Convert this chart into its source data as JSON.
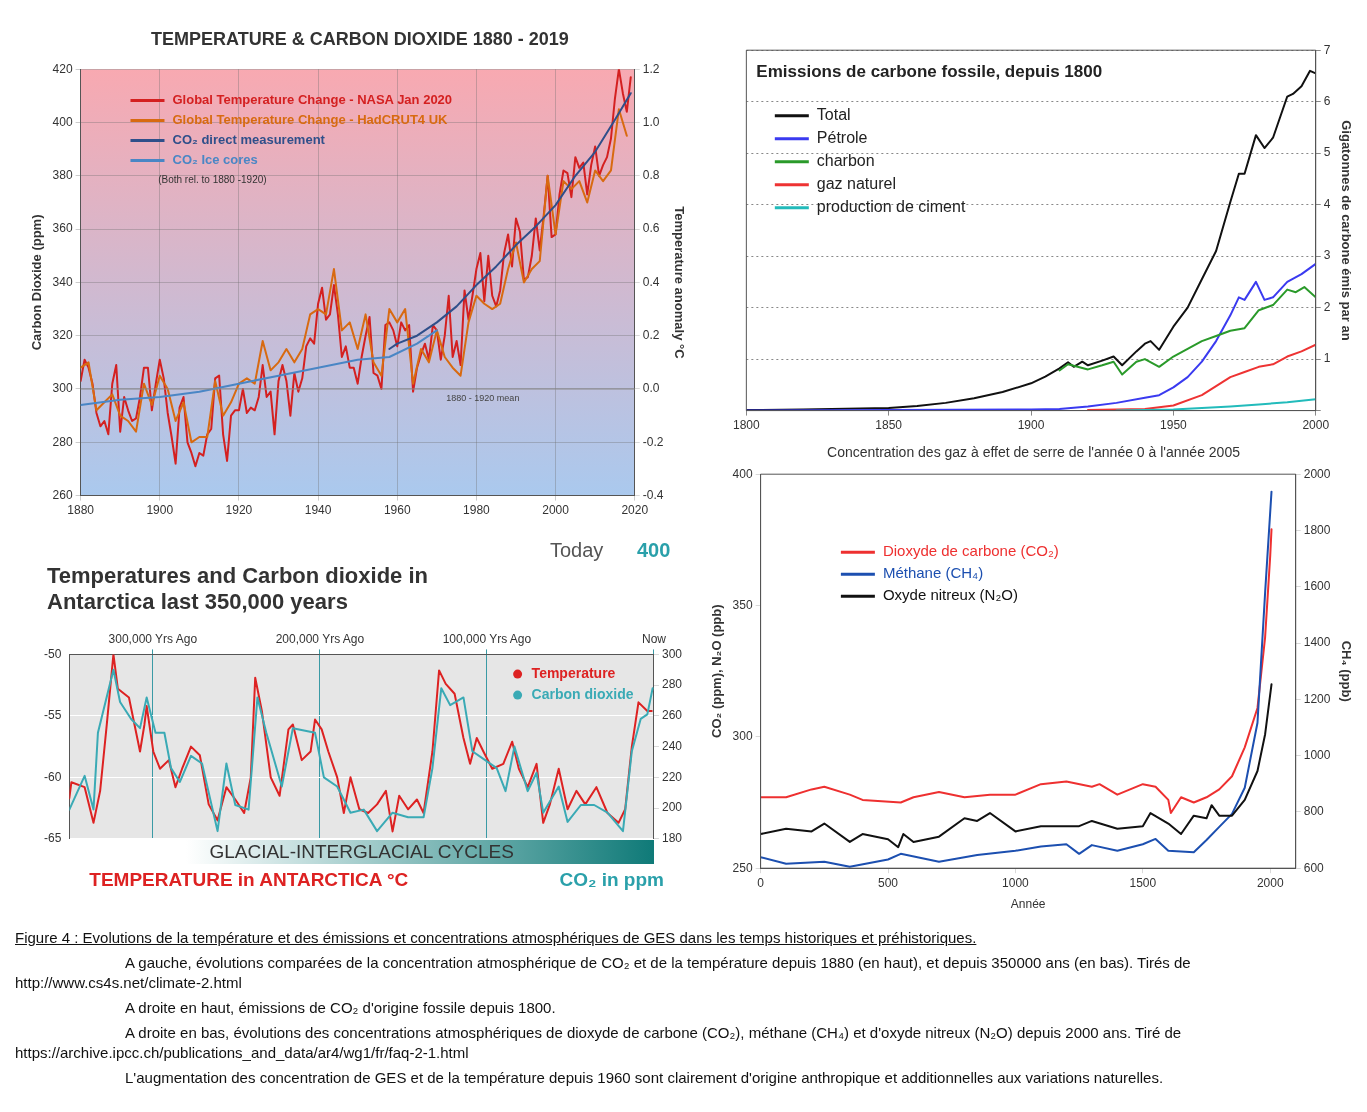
{
  "chart_data": [
    {
      "type": "line",
      "title": "TEMPERATURE & CARBON DIOXIDE 1880 - 2019",
      "ylabel": "Carbon Dioxide (ppm)",
      "y2label": "Temperature anomaly °C",
      "xlim": [
        1880,
        2020
      ],
      "xticks": [
        1880,
        1900,
        1920,
        1940,
        1960,
        1980,
        2000,
        2020
      ],
      "ylim": [
        260,
        420
      ],
      "yticks": [
        260,
        280,
        300,
        320,
        340,
        360,
        380,
        400,
        420
      ],
      "y2lim": [
        -0.4,
        1.2
      ],
      "y2ticks": [
        {
          "value": -0.4,
          "label": "-0.4"
        },
        {
          "value": -0.2,
          "label": "-0.2"
        },
        {
          "value": 0,
          "label": "0.0"
        },
        {
          "value": 0.2,
          "label": "0.2"
        },
        {
          "value": 0.4,
          "label": "0.4"
        },
        {
          "value": 0.6,
          "label": "0.6"
        },
        {
          "value": 0.8,
          "label": "0.8"
        },
        {
          "value": 1,
          "label": "1.0"
        },
        {
          "value": 1.2,
          "label": "1.2"
        }
      ],
      "grid": true,
      "legend": "top left",
      "annotations": [
        "(Both rel. to 1880 -1920)"
      ],
      "ref_lines": [
        {
          "axis": "y2",
          "value": 0,
          "label": "1880 - 1920 mean",
          "color": "#8a8a8a"
        }
      ],
      "series": [
        {
          "name": "Global Temperature Change - NASA Jan 2020",
          "color": "#d42020",
          "axis": "y2",
          "x": [
            1880,
            1881,
            1882,
            1883,
            1884,
            1885,
            1886,
            1887,
            1888,
            1889,
            1890,
            1891,
            1892,
            1893,
            1894,
            1895,
            1896,
            1897,
            1898,
            1899,
            1900,
            1901,
            1902,
            1903,
            1904,
            1905,
            1906,
            1907,
            1908,
            1909,
            1910,
            1911,
            1912,
            1913,
            1914,
            1915,
            1916,
            1917,
            1918,
            1919,
            1920,
            1921,
            1922,
            1923,
            1924,
            1925,
            1926,
            1927,
            1928,
            1929,
            1930,
            1931,
            1932,
            1933,
            1934,
            1935,
            1936,
            1937,
            1938,
            1939,
            1940,
            1941,
            1942,
            1943,
            1944,
            1945,
            1946,
            1947,
            1948,
            1949,
            1950,
            1951,
            1952,
            1953,
            1954,
            1955,
            1956,
            1957,
            1958,
            1959,
            1960,
            1961,
            1962,
            1963,
            1964,
            1965,
            1966,
            1967,
            1968,
            1969,
            1970,
            1971,
            1972,
            1973,
            1974,
            1975,
            1976,
            1977,
            1978,
            1979,
            1980,
            1981,
            1982,
            1983,
            1984,
            1985,
            1986,
            1987,
            1988,
            1989,
            1990,
            1991,
            1992,
            1993,
            1994,
            1995,
            1996,
            1997,
            1998,
            1999,
            2000,
            2001,
            2002,
            2003,
            2004,
            2005,
            2006,
            2007,
            2008,
            2009,
            2010,
            2011,
            2012,
            2013,
            2014,
            2015,
            2016,
            2017,
            2018,
            2019
          ],
          "values": [
            0.03,
            0.11,
            0.08,
            0.02,
            -0.09,
            -0.14,
            -0.12,
            -0.17,
            0.02,
            0.09,
            -0.16,
            -0.03,
            -0.08,
            -0.12,
            -0.11,
            -0.03,
            0.08,
            0.08,
            -0.08,
            0.02,
            0.11,
            0.04,
            -0.09,
            -0.18,
            -0.28,
            -0.07,
            -0.03,
            -0.2,
            -0.24,
            -0.29,
            -0.24,
            -0.25,
            -0.17,
            -0.15,
            0.04,
            0.05,
            -0.17,
            -0.27,
            -0.1,
            -0.08,
            -0.08,
            0,
            -0.09,
            -0.07,
            -0.08,
            -0.03,
            0.09,
            -0.03,
            -0.01,
            -0.17,
            0.03,
            0.09,
            0.03,
            -0.1,
            0.06,
            -0.01,
            0.04,
            0.16,
            0.19,
            0.17,
            0.32,
            0.38,
            0.26,
            0.28,
            0.39,
            0.28,
            0.12,
            0.16,
            0.08,
            0.08,
            0.02,
            0.12,
            0.2,
            0.27,
            0.06,
            0.05,
            0,
            0.24,
            0.25,
            0.22,
            0.16,
            0.25,
            0.22,
            0.24,
            -0.01,
            0.08,
            0.13,
            0.17,
            0.11,
            0.24,
            0.22,
            0.11,
            0.2,
            0.35,
            0.12,
            0.18,
            0.09,
            0.37,
            0.26,
            0.35,
            0.45,
            0.51,
            0.33,
            0.5,
            0.35,
            0.31,
            0.37,
            0.51,
            0.58,
            0.46,
            0.64,
            0.59,
            0.41,
            0.42,
            0.5,
            0.64,
            0.52,
            0.65,
            0.8,
            0.57,
            0.58,
            0.73,
            0.82,
            0.81,
            0.72,
            0.87,
            0.83,
            0.85,
            0.73,
            0.84,
            0.91,
            0.8,
            0.84,
            0.87,
            0.94,
            1.09,
            1.2,
            1.11,
            1.04,
            1.17
          ]
        },
        {
          "name": "Global Temperature Change - HadCRUT4 UK",
          "color": "#d86a10",
          "axis": "y2",
          "x": [
            1880,
            1882,
            1884,
            1886,
            1888,
            1890,
            1892,
            1894,
            1896,
            1898,
            1900,
            1902,
            1904,
            1906,
            1908,
            1910,
            1912,
            1914,
            1916,
            1918,
            1920,
            1922,
            1924,
            1926,
            1928,
            1930,
            1932,
            1934,
            1936,
            1938,
            1940,
            1942,
            1944,
            1946,
            1948,
            1950,
            1952,
            1954,
            1956,
            1958,
            1960,
            1962,
            1964,
            1966,
            1968,
            1970,
            1972,
            1974,
            1976,
            1978,
            1980,
            1982,
            1984,
            1986,
            1988,
            1990,
            1992,
            1994,
            1996,
            1998,
            2000,
            2002,
            2004,
            2006,
            2008,
            2010,
            2012,
            2014,
            2016,
            2018
          ],
          "values": [
            0.08,
            0.1,
            -0.08,
            -0.05,
            -0.02,
            -0.1,
            -0.12,
            -0.16,
            0.02,
            -0.06,
            0.05,
            0,
            -0.12,
            -0.05,
            -0.2,
            -0.18,
            -0.18,
            0.03,
            -0.1,
            -0.05,
            0.02,
            0.04,
            0.02,
            0.18,
            0.07,
            0.1,
            0.15,
            0.1,
            0.15,
            0.28,
            0.3,
            0.28,
            0.45,
            0.22,
            0.25,
            0.15,
            0.28,
            0.1,
            0.05,
            0.3,
            0.25,
            0.3,
            0.02,
            0.15,
            0.1,
            0.22,
            0.12,
            0.08,
            0.05,
            0.25,
            0.35,
            0.32,
            0.3,
            0.32,
            0.45,
            0.55,
            0.4,
            0.45,
            0.48,
            0.8,
            0.58,
            0.78,
            0.75,
            0.78,
            0.7,
            0.82,
            0.78,
            0.82,
            1.05,
            0.95
          ]
        },
        {
          "name": "CO₂ direct measurement",
          "color": "#2f4f8a",
          "x": [
            1958,
            1960,
            1965,
            1970,
            1975,
            1980,
            1985,
            1990,
            1995,
            2000,
            2005,
            2010,
            2015,
            2019
          ],
          "values": [
            315,
            317,
            320,
            325,
            331,
            339,
            346,
            354,
            361,
            369,
            380,
            389,
            401,
            411
          ]
        },
        {
          "name": "CO₂ Ice cores",
          "color": "#4a86c5",
          "x": [
            1880,
            1890,
            1900,
            1910,
            1920,
            1930,
            1940,
            1950,
            1958,
            1965,
            1970
          ],
          "values": [
            294,
            296,
            297,
            299,
            302,
            305,
            308,
            311,
            312,
            317,
            322
          ]
        }
      ]
    },
    {
      "type": "line",
      "title": "Emissions de carbone fossile, depuis 1800",
      "ylabel": "Gigatonnes de carbone émis par an",
      "xlim": [
        1800,
        2000
      ],
      "xticks": [
        1800,
        1850,
        1900,
        1950,
        2000
      ],
      "ylim": [
        0,
        7
      ],
      "yticks": [
        {
          "value": 0,
          "label": null
        },
        1,
        2,
        3,
        4,
        5,
        6,
        7
      ],
      "grid": "y",
      "legend": "top left",
      "series": [
        {
          "name": "Total",
          "color": "#111111",
          "x": [
            1800,
            1820,
            1840,
            1850,
            1860,
            1870,
            1880,
            1890,
            1900,
            1905,
            1910,
            1913,
            1915,
            1918,
            1920,
            1925,
            1929,
            1932,
            1937,
            1940,
            1942,
            1945,
            1950,
            1955,
            1960,
            1965,
            1970,
            1973,
            1975,
            1979,
            1982,
            1985,
            1990,
            1992,
            1995,
            1998,
            2000
          ],
          "values": [
            0.01,
            0.02,
            0.04,
            0.05,
            0.09,
            0.15,
            0.24,
            0.36,
            0.53,
            0.66,
            0.82,
            0.94,
            0.85,
            0.95,
            0.88,
            0.97,
            1.05,
            0.88,
            1.15,
            1.3,
            1.35,
            1.18,
            1.63,
            2,
            2.55,
            3.1,
            4.05,
            4.6,
            4.6,
            5.35,
            5.1,
            5.3,
            6.1,
            6.15,
            6.3,
            6.6,
            6.55
          ]
        },
        {
          "name": "Pétrole",
          "color": "#3a3af0",
          "x": [
            1800,
            1900,
            1910,
            1920,
            1930,
            1940,
            1945,
            1950,
            1955,
            1960,
            1965,
            1970,
            1973,
            1975,
            1979,
            1982,
            1985,
            1990,
            1995,
            2000
          ],
          "values": [
            0,
            0.02,
            0.03,
            0.08,
            0.15,
            0.25,
            0.3,
            0.45,
            0.65,
            0.95,
            1.35,
            1.85,
            2.2,
            2.15,
            2.5,
            2.15,
            2.2,
            2.5,
            2.65,
            2.85
          ]
        },
        {
          "name": "charbon",
          "color": "#2a9a2a",
          "x": [
            1910,
            1913,
            1920,
            1925,
            1929,
            1932,
            1937,
            1940,
            1945,
            1950,
            1955,
            1960,
            1965,
            1970,
            1975,
            1980,
            1985,
            1990,
            1993,
            1996,
            2000
          ],
          "values": [
            0.78,
            0.9,
            0.8,
            0.88,
            0.95,
            0.7,
            0.95,
            1,
            0.85,
            1.05,
            1.2,
            1.35,
            1.45,
            1.55,
            1.6,
            1.95,
            2.05,
            2.35,
            2.3,
            2.4,
            2.2
          ]
        },
        {
          "name": "gaz naturel",
          "color": "#ee3333",
          "x": [
            1920,
            1940,
            1950,
            1960,
            1970,
            1975,
            1980,
            1985,
            1990,
            1995,
            2000
          ],
          "values": [
            0.01,
            0.03,
            0.1,
            0.3,
            0.65,
            0.75,
            0.85,
            0.9,
            1.05,
            1.15,
            1.28
          ]
        },
        {
          "name": "production de ciment",
          "color": "#22bbbb",
          "x": [
            1930,
            1950,
            1960,
            1970,
            1980,
            1990,
            2000
          ],
          "values": [
            0,
            0.02,
            0.05,
            0.08,
            0.12,
            0.16,
            0.22
          ]
        }
      ]
    },
    {
      "type": "line",
      "title": "Temperatures and Carbon dioxide in Antarctica last 350,000 years",
      "xlim": [
        350000,
        0
      ],
      "xticks": [
        {
          "value": 300000,
          "label": "300,000 Yrs Ago"
        },
        {
          "value": 200000,
          "label": "200,000 Yrs Ago"
        },
        {
          "value": 100000,
          "label": "100,000 Yrs Ago"
        },
        {
          "value": 0,
          "label": "Now"
        }
      ],
      "ylim": [
        -65,
        -50
      ],
      "yticks": [
        -65,
        -60,
        -55,
        -50
      ],
      "y2lim": [
        180,
        300
      ],
      "y2ticks": [
        180,
        200,
        220,
        240,
        260,
        280,
        300
      ],
      "grid": true,
      "legend": "top right",
      "annotations": [
        "Today",
        "400",
        "GLACIAL-INTERGLACIAL CYCLES",
        "TEMPERATURE in ANTARCTICA °C",
        "CO₂ in ppm"
      ],
      "series": [
        {
          "name": "Temperature",
          "color": "#dd2222",
          "x": [
            350000,
            348800,
            340850,
            335540,
            331560,
            327580,
            323610,
            320950,
            314320,
            307690,
            305040,
            303710,
            299730,
            295750,
            290450,
            286470,
            282490,
            277190,
            271880,
            266580,
            261270,
            255970,
            250660,
            245360,
            241380,
            238730,
            234750,
            229440,
            224140,
            218830,
            216180,
            210870,
            205570,
            202920,
            198940,
            194960,
            189650,
            185680,
            181700,
            176390,
            171090,
            165780,
            160480,
            156500,
            152520,
            147210,
            141910,
            137930,
            132630,
            128650,
            124670,
            119360,
            114060,
            110080,
            106100,
            102120,
            96820,
            90190,
            84880,
            80900,
            75600,
            70290,
            66310,
            62330,
            57030,
            51720,
            46420,
            41110,
            34480,
            27850,
            21220,
            17240,
            13260,
            9280,
            3980,
            1330
          ],
          "values": [
            -61.7,
            -60.4,
            -60.8,
            -63.7,
            -61.1,
            -55.7,
            -50,
            -52.8,
            -53.5,
            -57.9,
            -55.7,
            -54.2,
            -57.9,
            -59.3,
            -58.6,
            -60.8,
            -59.3,
            -57.5,
            -58.2,
            -62.2,
            -63.5,
            -60.8,
            -61.8,
            -62.9,
            -60,
            -51.9,
            -54.6,
            -60,
            -61.5,
            -56.1,
            -55.7,
            -58.6,
            -57.9,
            -55.3,
            -56.1,
            -57.9,
            -60,
            -62.9,
            -60,
            -62.6,
            -62.9,
            -62.2,
            -61.1,
            -64.4,
            -61.5,
            -62.6,
            -61.8,
            -62.9,
            -57.9,
            -51.3,
            -52.4,
            -53.2,
            -56.8,
            -58.9,
            -56.8,
            -57.9,
            -59.3,
            -58.9,
            -57.1,
            -59.3,
            -60.8,
            -58.9,
            -63.7,
            -62.2,
            -59.3,
            -62.6,
            -61.1,
            -62.2,
            -60.8,
            -62.9,
            -63.7,
            -62.6,
            -57.5,
            -53.9,
            -54.6,
            -54.6
          ]
        },
        {
          "name": "Carbon dioxide",
          "color": "#3aaab5",
          "axis": "y2",
          "x": [
            350000,
            340850,
            335540,
            332890,
            323610,
            319630,
            313000,
            307690,
            303710,
            298410,
            293100,
            289120,
            283820,
            277190,
            270560,
            261270,
            255970,
            250660,
            242700,
            237400,
            232090,
            222810,
            216180,
            202920,
            197610,
            189650,
            181700,
            173740,
            165780,
            156500,
            147210,
            137930,
            132630,
            127330,
            122020,
            114060,
            108750,
            102120,
            94160,
            88860,
            83550,
            75600,
            70290,
            66310,
            57030,
            51720,
            43770,
            35810,
            27850,
            18570,
            13260,
            7960,
            3980,
            800
          ],
          "values": [
            199,
            221,
            199,
            249,
            290,
            269,
            258,
            252,
            272,
            249,
            249,
            226,
            217,
            234,
            229,
            185,
            229,
            202,
            199,
            272,
            249,
            214,
            252,
            249,
            220,
            214,
            197,
            199,
            185,
            197,
            194,
            194,
            226,
            278,
            267,
            272,
            237,
            232,
            226,
            211,
            240,
            211,
            223,
            197,
            214,
            191,
            202,
            202,
            197,
            185,
            237,
            258,
            261,
            278
          ]
        }
      ]
    },
    {
      "type": "line",
      "title": "Concentration des gaz à effet de serre de l'année 0 à l'année 2005",
      "xlabel": "Année",
      "ylabel": "CO₂ (ppm), N₂O (ppb)",
      "y2label": "CH₄ (ppb)",
      "xlim": [
        0,
        2100
      ],
      "xticks": [
        0,
        500,
        1000,
        1500,
        2000
      ],
      "ylim": [
        250,
        400
      ],
      "yticks": [
        250,
        300,
        350,
        400
      ],
      "y2lim": [
        600,
        2000
      ],
      "y2ticks": [
        600,
        800,
        1000,
        1200,
        1400,
        1600,
        1800,
        2000
      ],
      "legend": "top left",
      "series": [
        {
          "name": "Dioxyde de carbone (CO₂)",
          "color": "#ee3030",
          "x": [
            0,
            100,
            200,
            250,
            350,
            400,
            550,
            600,
            700,
            800,
            900,
            1000,
            1100,
            1200,
            1300,
            1330,
            1400,
            1500,
            1550,
            1600,
            1610,
            1650,
            1700,
            1750,
            1800,
            1850,
            1900,
            1950,
            1980,
            2000,
            2005
          ],
          "values": [
            277,
            277,
            280,
            281,
            278,
            276,
            275,
            277,
            279,
            277,
            278,
            278,
            282,
            283,
            281,
            282,
            278,
            282,
            281,
            276,
            271,
            277,
            275,
            277,
            280,
            285,
            296,
            311,
            338,
            369,
            379
          ]
        },
        {
          "name": "Méthane (CH₄)",
          "color": "#1c4fb0",
          "axis": "y2",
          "x": [
            0,
            100,
            250,
            350,
            500,
            550,
            700,
            850,
            1000,
            1100,
            1200,
            1250,
            1300,
            1400,
            1500,
            1550,
            1600,
            1700,
            1750,
            1800,
            1850,
            1900,
            1950,
            1980,
            2005
          ],
          "values": [
            639,
            616,
            623,
            605,
            631,
            651,
            623,
            647,
            662,
            677,
            685,
            651,
            682,
            662,
            685,
            704,
            662,
            657,
            700,
            747,
            793,
            886,
            1117,
            1580,
            1938
          ]
        },
        {
          "name": "Oxyde nitreux (N₂O)",
          "color": "#111111",
          "x": [
            0,
            100,
            200,
            250,
            350,
            400,
            500,
            540,
            560,
            600,
            700,
            800,
            850,
            900,
            1000,
            1100,
            1200,
            1250,
            1300,
            1400,
            1500,
            1530,
            1600,
            1650,
            1700,
            1750,
            1770,
            1800,
            1850,
            1900,
            1950,
            1980,
            2005
          ],
          "values": [
            263,
            265,
            264,
            267,
            260,
            263,
            261,
            258,
            263,
            260,
            262,
            269,
            268,
            271,
            264,
            266,
            266,
            266,
            268,
            265,
            266,
            271,
            267,
            263,
            270,
            269,
            274,
            270,
            270,
            276,
            287,
            301,
            320
          ]
        }
      ]
    },
    {
      "type": "other",
      "annotations": [
        "Figure 4 : Evolutions de la température et des émissions et concentrations atmosphériques de GES dans les temps historiques et préhistoriques.",
        "A gauche, évolutions comparées de la concentration atmosphérique de CO₂ et de la température depuis 1880 (en haut), et depuis 350000 ans (en bas). Tirés de http://www.cs4s.net/climate-2.html",
        "A droite en haut, émissions de CO₂ d'origine fossile depuis 1800.",
        "A droite en bas, évolutions des concentrations atmosphériques de dioxyde de carbone (CO₂), méthane (CH₄) et d'oxyde nitreux (N₂O) depuis 2000 ans. Tiré de https://archive.ipcc.ch/publications_and_data/ar4/wg1/fr/faq-2-1.html",
        "L'augmentation des concentration de GES et de la température depuis 1960 sont clairement d'origine anthropique et additionnelles aux variations naturelles."
      ]
    }
  ]
}
